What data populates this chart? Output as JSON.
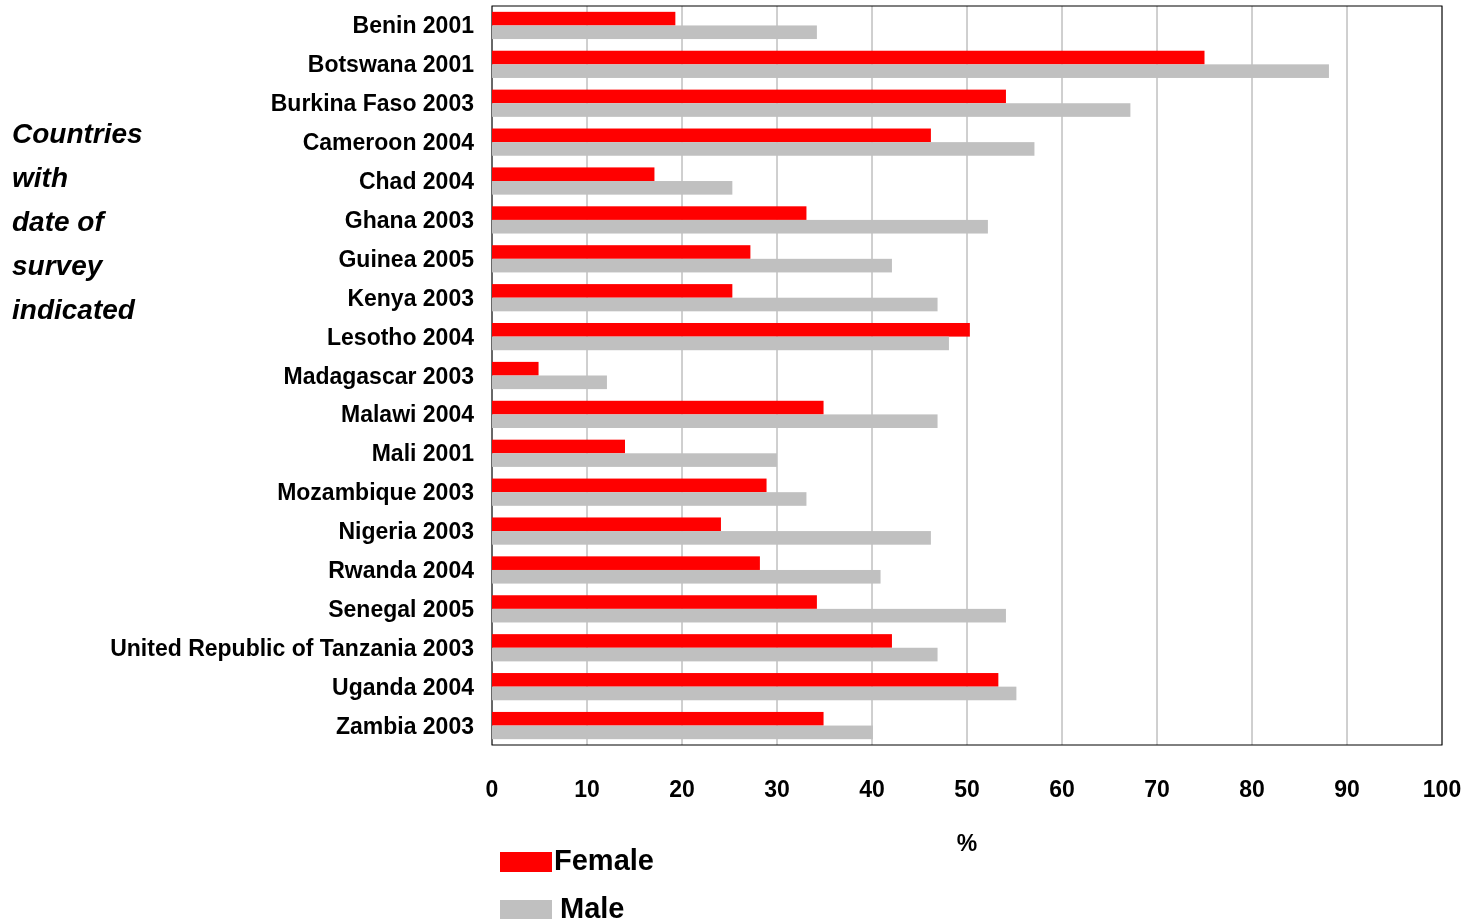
{
  "chart_data": {
    "type": "bar",
    "orientation": "horizontal",
    "xlabel": "%",
    "annotations": [
      "Countries with date of survey indicated"
    ],
    "categories": [
      "Benin 2001",
      "Botswana 2001",
      "Burkina Faso 2003",
      "Cameroon 2004",
      "Chad 2004",
      "Ghana 2003",
      "Guinea 2005",
      "Kenya 2003",
      "Lesotho 2004",
      "Madagascar 2003",
      "Malawi 2004",
      "Mali 2001",
      "Mozambique 2003",
      "Nigeria 2003",
      "Rwanda 2004",
      "Senegal 2005",
      "United Republic of Tanzania 2003",
      "Uganda 2004",
      "Zambia 2003"
    ],
    "series": [
      {
        "name": "Female",
        "color": "#ff0000",
        "values": [
          19.3,
          75,
          54.1,
          46.2,
          17.1,
          33.1,
          27.2,
          25.3,
          50.3,
          4.9,
          34.9,
          14,
          28.9,
          24.1,
          28.2,
          34.2,
          42.1,
          53.3,
          34.9
        ]
      },
      {
        "name": "Male",
        "color": "#c0c0c0",
        "values": [
          34.2,
          88.1,
          67.2,
          57.1,
          25.3,
          52.2,
          42.1,
          46.9,
          48.1,
          12.1,
          46.9,
          30,
          33.1,
          46.2,
          40.9,
          54.1,
          46.9,
          55.2,
          40.1
        ]
      }
    ],
    "xlim": [
      0,
      100
    ],
    "xticks": [
      0,
      10,
      20,
      30,
      40,
      50,
      60,
      70,
      80,
      90,
      100
    ],
    "grid": "x",
    "legend": "bottom left"
  }
}
